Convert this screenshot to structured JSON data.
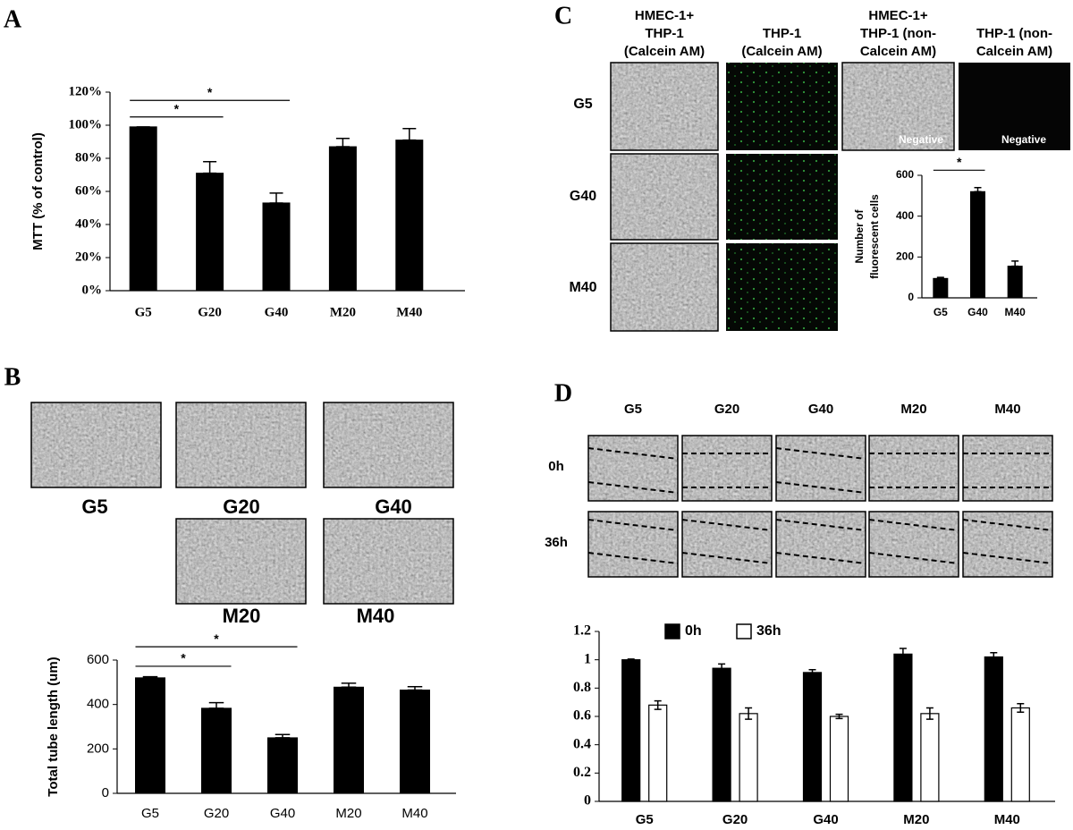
{
  "figure": {
    "panel_labels": [
      "A",
      "B",
      "C",
      "D"
    ],
    "b_images": [
      "G5",
      "G20",
      "G40",
      "M20",
      "M40"
    ],
    "c_columns": [
      [
        "HMEC-1+",
        "THP-1",
        "(Calcein AM)"
      ],
      [
        "THP-1",
        "(Calcein AM)"
      ],
      [
        "HMEC-1+",
        "THP-1 (non-",
        "Calcein AM)"
      ],
      [
        "THP-1 (non-",
        "Calcein AM)"
      ]
    ],
    "c_rows": [
      "G5",
      "G40",
      "M40"
    ],
    "c_negative": [
      "Negative",
      "Negative"
    ],
    "d_columns": [
      "G5",
      "G20",
      "G40",
      "M20",
      "M40"
    ],
    "d_rows": [
      "0h",
      "36h"
    ]
  },
  "chart_data": [
    {
      "type": "bar",
      "categories": [
        "G5",
        "G20",
        "G40",
        "M20",
        "M40"
      ],
      "values": [
        99,
        71,
        53,
        87,
        91
      ],
      "errors": [
        0,
        7,
        6,
        5,
        7
      ],
      "color": "#000000",
      "ylabel": "MTT  (% of control)",
      "ylim": [
        0,
        120
      ],
      "yticks": [
        {
          "value": 0,
          "label": "0%"
        },
        {
          "value": 20,
          "label": "20%"
        },
        {
          "value": 40,
          "label": "40%"
        },
        {
          "value": 60,
          "label": "60%"
        },
        {
          "value": 80,
          "label": "80%"
        },
        {
          "value": 100,
          "label": "100%"
        },
        {
          "value": 120,
          "label": "120%"
        }
      ],
      "annotations": [
        {
          "text": "*",
          "x": [
            0,
            1
          ],
          "y": 105
        },
        {
          "text": "*",
          "x": [
            0,
            2
          ],
          "y": 115
        }
      ]
    },
    {
      "type": "bar",
      "categories": [
        "G5",
        "G20",
        "G40",
        "M20",
        "M40"
      ],
      "values": [
        520,
        383,
        250,
        478,
        465
      ],
      "errors": [
        5,
        25,
        15,
        18,
        15
      ],
      "color": "#000000",
      "ylabel": "Total tube length (um)",
      "ylim": [
        0,
        600
      ],
      "yticks": [
        0,
        200,
        400,
        600
      ],
      "annotations": [
        {
          "text": "*",
          "x": [
            0,
            1
          ],
          "y": 572
        },
        {
          "text": "*",
          "x": [
            0,
            2
          ],
          "y": 660
        }
      ]
    },
    {
      "type": "bar",
      "categories": [
        "G5",
        "G40",
        "M40"
      ],
      "values": [
        95,
        520,
        155
      ],
      "errors": [
        5,
        20,
        25
      ],
      "color": "#000000",
      "ylabel": [
        "Number of",
        "fluorescent cells"
      ],
      "ylim": [
        0,
        600
      ],
      "yticks": [
        0,
        200,
        400,
        600
      ],
      "annotations": [
        {
          "text": "*",
          "x": [
            0,
            1
          ],
          "y": 625
        }
      ]
    },
    {
      "type": "grouped-bar",
      "categories": [
        "G5",
        "G20",
        "G40",
        "M20",
        "M40"
      ],
      "series": [
        {
          "name": "0h",
          "color": "#000000",
          "values": [
            1.0,
            0.94,
            0.91,
            1.04,
            1.02
          ],
          "errors": [
            0.005,
            0.03,
            0.02,
            0.04,
            0.03
          ]
        },
        {
          "name": "36h",
          "color": "#ffffff",
          "values": [
            0.68,
            0.62,
            0.6,
            0.62,
            0.66
          ],
          "errors": [
            0.03,
            0.04,
            0.015,
            0.04,
            0.03
          ]
        }
      ],
      "ylim": [
        0,
        1.2
      ],
      "yticks": [
        0,
        0.2,
        0.4,
        0.6,
        0.8,
        1,
        1.2
      ],
      "legend": "top"
    }
  ]
}
